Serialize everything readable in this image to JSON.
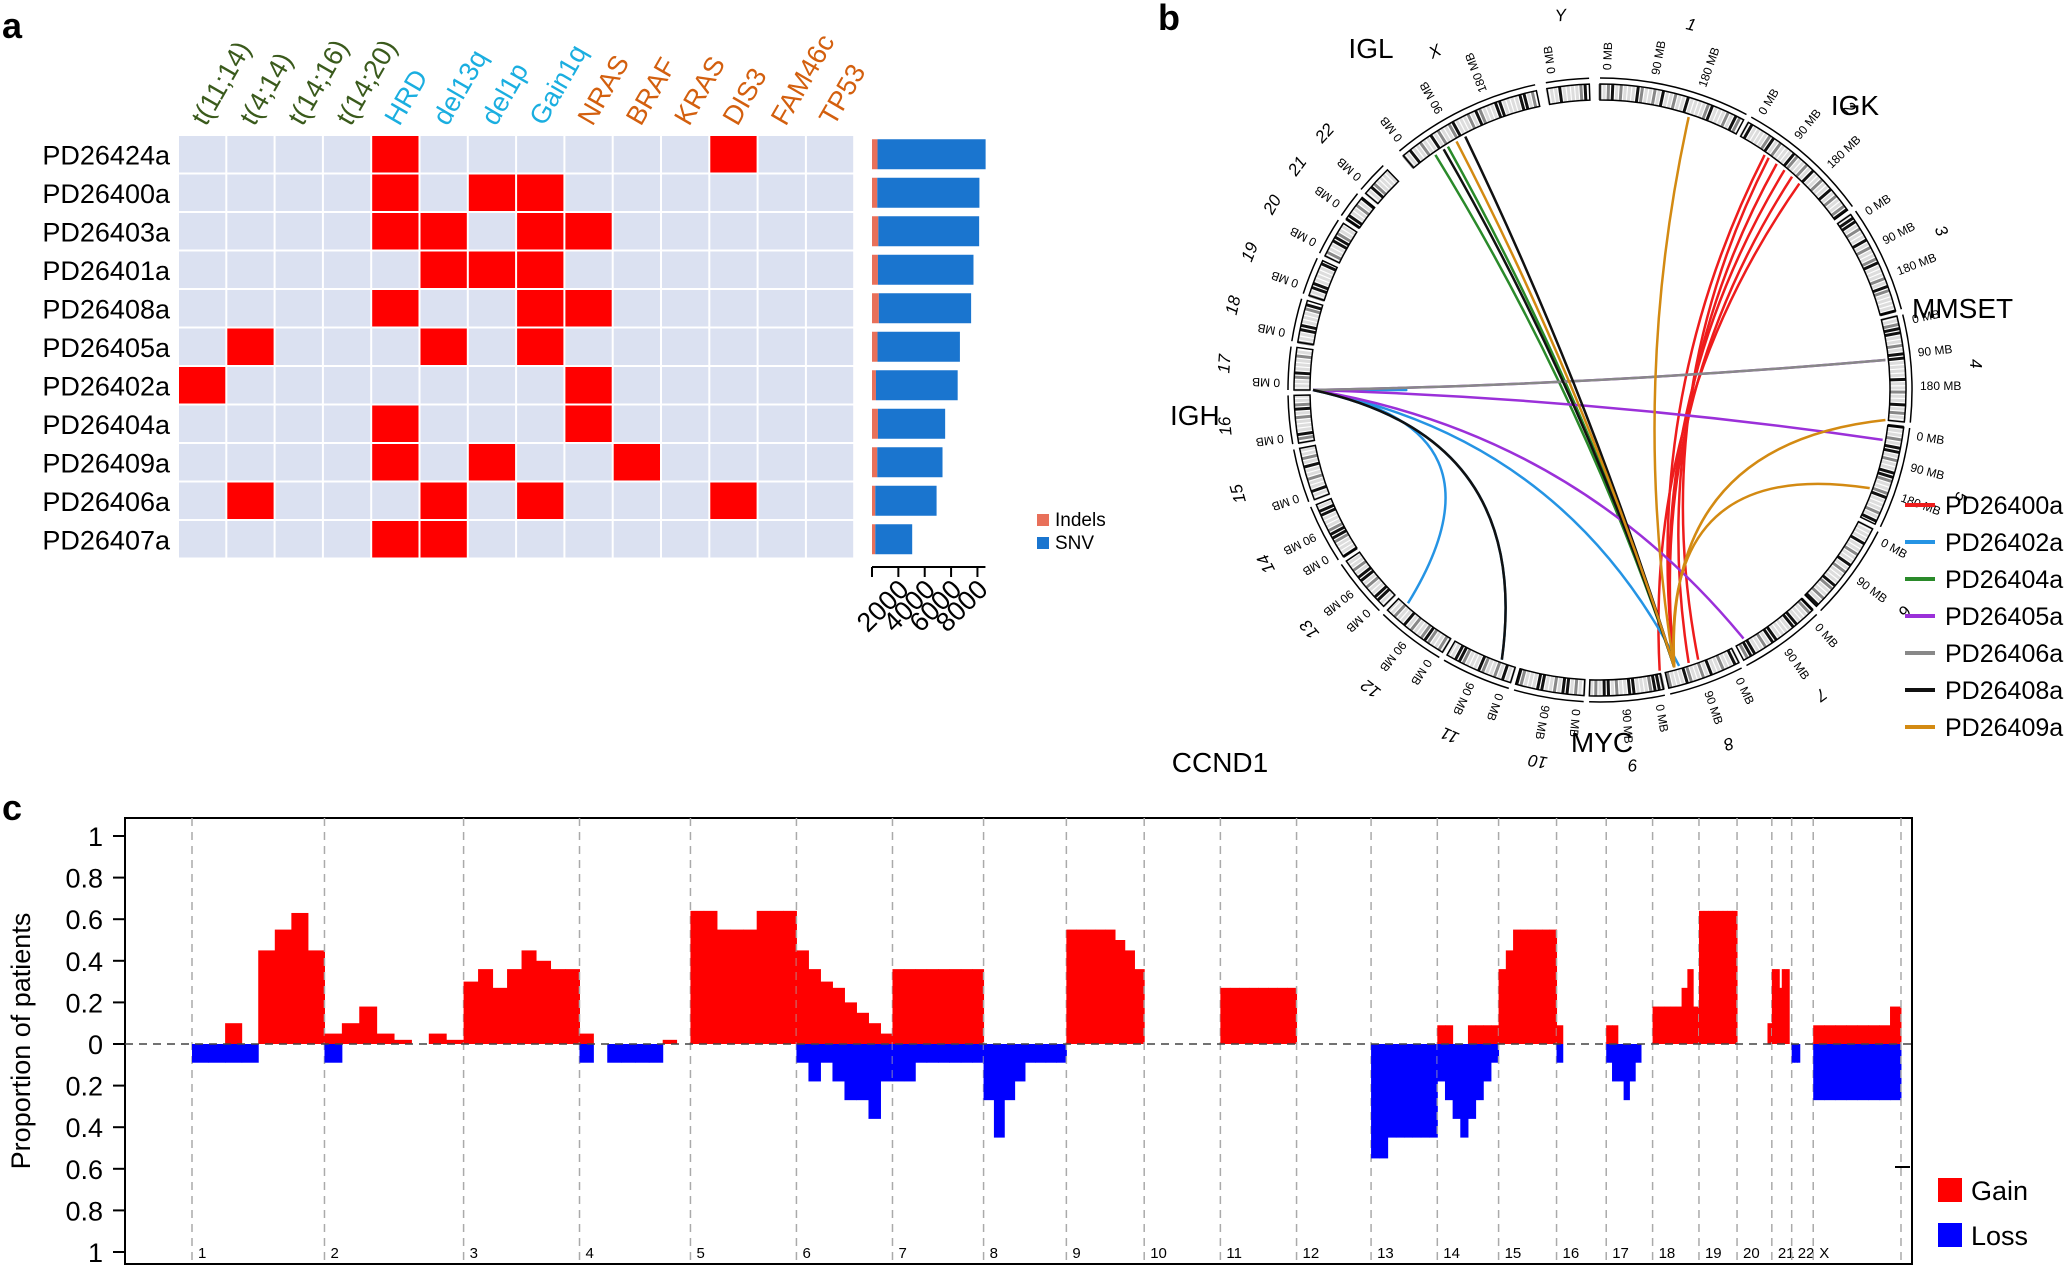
{
  "panel_labels": {
    "a": "a",
    "b": "b",
    "c": "c"
  },
  "chart_data": [
    {
      "id": "panel_a_matrix",
      "type": "heatmap",
      "title": "",
      "rows": [
        "PD26424a",
        "PD26400a",
        "PD26403a",
        "PD26401a",
        "PD26408a",
        "PD26405a",
        "PD26402a",
        "PD26404a",
        "PD26409a",
        "PD26406a",
        "PD26407a"
      ],
      "columns": [
        {
          "label": "t(11;14)",
          "group": "translocation",
          "color": "#3a5a1c"
        },
        {
          "label": "t(4;14)",
          "group": "translocation",
          "color": "#3a5a1c"
        },
        {
          "label": "t(14;16)",
          "group": "translocation",
          "color": "#3a5a1c"
        },
        {
          "label": "t(14;20)",
          "group": "translocation",
          "color": "#3a5a1c"
        },
        {
          "label": "HRD",
          "group": "copy_number",
          "color": "#1aaee0"
        },
        {
          "label": "del13q",
          "group": "copy_number",
          "color": "#1aaee0"
        },
        {
          "label": "del1p",
          "group": "copy_number",
          "color": "#1aaee0"
        },
        {
          "label": "Gain1q",
          "group": "copy_number",
          "color": "#1aaee0"
        },
        {
          "label": "NRAS",
          "group": "mutation",
          "color": "#d35f0e"
        },
        {
          "label": "BRAF",
          "group": "mutation",
          "color": "#d35f0e"
        },
        {
          "label": "KRAS",
          "group": "mutation",
          "color": "#d35f0e"
        },
        {
          "label": "DIS3",
          "group": "mutation",
          "color": "#d35f0e"
        },
        {
          "label": "FAM46c",
          "group": "mutation",
          "color": "#d35f0e"
        },
        {
          "label": "TP53",
          "group": "mutation",
          "color": "#d35f0e"
        }
      ],
      "values": [
        [
          0,
          0,
          0,
          0,
          1,
          0,
          0,
          0,
          0,
          0,
          0,
          1,
          0,
          0
        ],
        [
          0,
          0,
          0,
          0,
          1,
          0,
          1,
          1,
          0,
          0,
          0,
          0,
          0,
          0
        ],
        [
          0,
          0,
          0,
          0,
          1,
          1,
          0,
          1,
          1,
          0,
          0,
          0,
          0,
          0
        ],
        [
          0,
          0,
          0,
          0,
          0,
          1,
          1,
          1,
          0,
          0,
          0,
          0,
          0,
          0
        ],
        [
          0,
          0,
          0,
          0,
          1,
          0,
          0,
          1,
          1,
          0,
          0,
          0,
          0,
          0
        ],
        [
          0,
          1,
          0,
          0,
          0,
          1,
          0,
          1,
          0,
          0,
          0,
          0,
          0,
          0
        ],
        [
          1,
          0,
          0,
          0,
          0,
          0,
          0,
          0,
          1,
          0,
          0,
          0,
          0,
          0
        ],
        [
          0,
          0,
          0,
          0,
          1,
          0,
          0,
          0,
          1,
          0,
          0,
          0,
          0,
          0
        ],
        [
          0,
          0,
          0,
          0,
          1,
          0,
          1,
          0,
          0,
          1,
          0,
          0,
          0,
          0
        ],
        [
          0,
          1,
          0,
          0,
          0,
          1,
          0,
          1,
          0,
          0,
          0,
          1,
          0,
          0
        ],
        [
          0,
          0,
          0,
          0,
          1,
          1,
          0,
          0,
          0,
          0,
          0,
          0,
          0,
          0
        ]
      ],
      "present_color": "#ff0000",
      "absent_color": "#dbe1f1"
    },
    {
      "id": "panel_a_bars",
      "type": "bar",
      "orientation": "horizontal",
      "stacked": true,
      "categories": [
        "PD26424a",
        "PD26400a",
        "PD26403a",
        "PD26401a",
        "PD26408a",
        "PD26405a",
        "PD26402a",
        "PD26404a",
        "PD26409a",
        "PD26406a",
        "PD26407a"
      ],
      "series": [
        {
          "name": "Indels",
          "color": "#e8705a",
          "values": [
            420,
            400,
            480,
            450,
            520,
            420,
            300,
            450,
            400,
            250,
            250
          ]
        },
        {
          "name": "SNV",
          "color": "#1a75cf",
          "values": [
            8200,
            7750,
            7650,
            7250,
            7000,
            6250,
            6200,
            5100,
            4950,
            4650,
            2800
          ]
        }
      ],
      "xticks": [
        2000,
        4000,
        6000,
        8000
      ],
      "xlim": [
        0,
        9000
      ],
      "legend": [
        "Indels",
        "SNV"
      ]
    },
    {
      "id": "panel_b_circos",
      "type": "circos",
      "chromosomes": [
        "1",
        "2",
        "3",
        "4",
        "5",
        "6",
        "7",
        "8",
        "9",
        "10",
        "11",
        "12",
        "13",
        "14",
        "15",
        "16",
        "17",
        "18",
        "19",
        "20",
        "21",
        "22",
        "X",
        "Y"
      ],
      "position_labels": [
        "0 MB",
        "90 MB",
        "180 MB"
      ],
      "gene_labels": [
        "IGL",
        "IGK",
        "MMSET",
        "IGH",
        "CCND1",
        "MYC"
      ],
      "legend": [
        {
          "name": "PD26400a",
          "color": "#ee1c1c"
        },
        {
          "name": "PD26402a",
          "color": "#2594e4"
        },
        {
          "name": "PD26404a",
          "color": "#2a8a2a"
        },
        {
          "name": "PD26405a",
          "color": "#9b30d9"
        },
        {
          "name": "PD26406a",
          "color": "#888888"
        },
        {
          "name": "PD26408a",
          "color": "#111111"
        },
        {
          "name": "PD26409a",
          "color": "#d38a12"
        }
      ]
    },
    {
      "id": "panel_c_cnv",
      "type": "area",
      "ylabel": "Proportion of patients",
      "yticks_top": [
        "1",
        "0.8",
        "0.6",
        "0.4",
        "0.2",
        "0"
      ],
      "yticks_bottom": [
        "0.2",
        "0.4",
        "0.6",
        "0.8",
        "1"
      ],
      "chromosomes": [
        "1",
        "2",
        "3",
        "4",
        "5",
        "6",
        "7",
        "8",
        "9",
        "10",
        "11",
        "12",
        "13",
        "14",
        "15",
        "16",
        "17",
        "18",
        "19",
        "20",
        "21",
        "22",
        "X"
      ],
      "chrom_fraction_of_axis": [
        0.08,
        0.084,
        0.07,
        0.067,
        0.064,
        0.058,
        0.055,
        0.05,
        0.047,
        0.046,
        0.046,
        0.045,
        0.04,
        0.037,
        0.035,
        0.03,
        0.028,
        0.028,
        0.023,
        0.021,
        0.012,
        0.013,
        0.053
      ],
      "gain_profile": [
        [
          0.0,
          0.0,
          0.1,
          0.0,
          0.45,
          0.55,
          0.63,
          0.45
        ],
        [
          0.05,
          0.1,
          0.18,
          0.05,
          0.02,
          0.0,
          0.05,
          0.02
        ],
        [
          0.3,
          0.36,
          0.27,
          0.36,
          0.45,
          0.4,
          0.36,
          0.36
        ],
        [
          0.05,
          0.0,
          0.0,
          0.0,
          0.0,
          0.0,
          0.02,
          0.0
        ],
        [
          0.64,
          0.64,
          0.55,
          0.55,
          0.55,
          0.64,
          0.64,
          0.64
        ],
        [
          0.45,
          0.36,
          0.3,
          0.27,
          0.2,
          0.15,
          0.1,
          0.05
        ],
        [
          0.36,
          0.36,
          0.36,
          0.36,
          0.36,
          0.36,
          0.36,
          0.36
        ],
        [
          0.0,
          0.0,
          0.0,
          0.0,
          0.0,
          0.0,
          0.0,
          0.0
        ],
        [
          0.55,
          0.55,
          0.55,
          0.55,
          0.55,
          0.5,
          0.45,
          0.36
        ],
        [
          0.0,
          0.0,
          0.0,
          0.0,
          0.0,
          0.0,
          0.0,
          0.0
        ],
        [
          0.27,
          0.27,
          0.27,
          0.27,
          0.27,
          0.27,
          0.27,
          0.27
        ],
        [
          0.0,
          0.0,
          0.0,
          0.0,
          0.0,
          0.0,
          0.0,
          0.0
        ],
        [
          0.0,
          0.0,
          0.0,
          0.0,
          0.0,
          0.0,
          0.0,
          0.0
        ],
        [
          0.09,
          0.09,
          0.0,
          0.0,
          0.09,
          0.09,
          0.09,
          0.09
        ],
        [
          0.36,
          0.45,
          0.55,
          0.55,
          0.55,
          0.55,
          0.55,
          0.55
        ],
        [
          0.09,
          0.0,
          0.0,
          0.0,
          0.0,
          0.0,
          0.0,
          0.0
        ],
        [
          0.09,
          0.09,
          0.0,
          0.0,
          0.0,
          0.0,
          0.0,
          0.0
        ],
        [
          0.18,
          0.18,
          0.18,
          0.18,
          0.18,
          0.27,
          0.36,
          0.18
        ],
        [
          0.64,
          0.64,
          0.64,
          0.64,
          0.64,
          0.64,
          0.64,
          0.64
        ],
        [
          0.0,
          0.0,
          0.0,
          0.0,
          0.0,
          0.0,
          0.0,
          0.1
        ],
        [
          0.36,
          0.36,
          0.36,
          0.27,
          0.36,
          0.36,
          0.36,
          0.0
        ],
        [
          0.0,
          0.0,
          0.0,
          0.0,
          0.0,
          0.0,
          0.0,
          0.0
        ],
        [
          0.09,
          0.09,
          0.09,
          0.09,
          0.09,
          0.09,
          0.09,
          0.18
        ]
      ],
      "loss_profile": [
        [
          0.09,
          0.09,
          0.09,
          0.09,
          0.0,
          0.0,
          0.0,
          0.0
        ],
        [
          0.09,
          0.0,
          0.0,
          0.0,
          0.0,
          0.0,
          0.0,
          0.0
        ],
        [
          0.0,
          0.0,
          0.0,
          0.0,
          0.0,
          0.0,
          0.0,
          0.0
        ],
        [
          0.09,
          0.0,
          0.09,
          0.09,
          0.09,
          0.09,
          0.0,
          0.0
        ],
        [
          0.0,
          0.0,
          0.0,
          0.0,
          0.0,
          0.0,
          0.0,
          0.0
        ],
        [
          0.09,
          0.18,
          0.09,
          0.18,
          0.27,
          0.27,
          0.36,
          0.18
        ],
        [
          0.18,
          0.18,
          0.09,
          0.09,
          0.09,
          0.09,
          0.09,
          0.09
        ],
        [
          0.27,
          0.45,
          0.27,
          0.18,
          0.09,
          0.09,
          0.09,
          0.09
        ],
        [
          0.0,
          0.0,
          0.0,
          0.0,
          0.0,
          0.0,
          0.0,
          0.0
        ],
        [
          0.0,
          0.0,
          0.0,
          0.0,
          0.0,
          0.0,
          0.0,
          0.0
        ],
        [
          0.0,
          0.0,
          0.0,
          0.0,
          0.0,
          0.0,
          0.0,
          0.0
        ],
        [
          0.0,
          0.0,
          0.0,
          0.0,
          0.0,
          0.0,
          0.0,
          0.0
        ],
        [
          0.55,
          0.55,
          0.45,
          0.45,
          0.45,
          0.45,
          0.45,
          0.45
        ],
        [
          0.18,
          0.27,
          0.36,
          0.45,
          0.36,
          0.27,
          0.18,
          0.09
        ],
        [
          0.0,
          0.0,
          0.0,
          0.0,
          0.0,
          0.0,
          0.0,
          0.0
        ],
        [
          0.09,
          0.0,
          0.0,
          0.0,
          0.0,
          0.0,
          0.0,
          0.0
        ],
        [
          0.09,
          0.18,
          0.18,
          0.27,
          0.18,
          0.09,
          0.0,
          0.0
        ],
        [
          0.0,
          0.0,
          0.0,
          0.0,
          0.0,
          0.0,
          0.0,
          0.0
        ],
        [
          0.0,
          0.0,
          0.0,
          0.0,
          0.0,
          0.0,
          0.0,
          0.0
        ],
        [
          0.0,
          0.0,
          0.0,
          0.0,
          0.0,
          0.0,
          0.0,
          0.0
        ],
        [
          0.0,
          0.0,
          0.0,
          0.0,
          0.0,
          0.0,
          0.0,
          0.0
        ],
        [
          0.09,
          0.09,
          0.09,
          0.0,
          0.0,
          0.0,
          0.0,
          0.0
        ],
        [
          0.27,
          0.27,
          0.27,
          0.27,
          0.27,
          0.27,
          0.27,
          0.27
        ]
      ],
      "legend": [
        {
          "name": "Gain",
          "color": "#ff0000"
        },
        {
          "name": "Loss",
          "color": "#0000ff"
        }
      ]
    }
  ]
}
